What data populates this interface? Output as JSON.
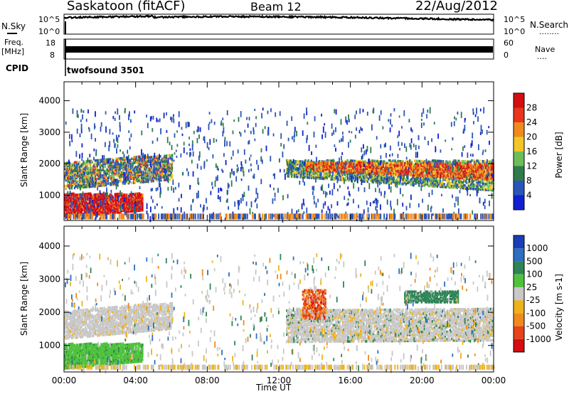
{
  "header": {
    "station": "Saskatoon (fitACF)",
    "beam": "Beam 12",
    "date": "22/Aug/2012"
  },
  "nsky_panel": {
    "left_label": "N.Sky",
    "right_label": "N.Search",
    "right_dots": "........",
    "tick_top": "10^5",
    "tick_bottom": "10^0"
  },
  "freq_panel": {
    "left_label_1": "Freq.",
    "left_label_2": "[MHz]",
    "tick_left_top": "18",
    "tick_left_bottom": "8",
    "right_label": "Nave",
    "right_dots": "....",
    "tick_right_top": "60",
    "tick_right_bottom": "0"
  },
  "cpid": {
    "label": "CPID",
    "program": "twofsound 3501"
  },
  "chart_data": [
    {
      "type": "heatmap",
      "name": "power",
      "ylabel": "Slant Range [km]",
      "ylim": [
        200,
        4600
      ],
      "yticks": [
        "1000",
        "2000",
        "3000",
        "4000"
      ],
      "ytick_values": [
        1000,
        2000,
        3000,
        4000
      ],
      "xlim": [
        0,
        24
      ],
      "colorbar": {
        "label": "Power [dB]",
        "ticks": [
          "4",
          "8",
          "12",
          "16",
          "20",
          "24",
          "28"
        ],
        "colors": [
          "#1020d0",
          "#2a55b8",
          "#2f7b4d",
          "#6fbd58",
          "#f2c62a",
          "#f08a1c",
          "#e8351c",
          "#d40d10"
        ]
      },
      "bands": [
        {
          "x": [
            0.0,
            4.4
          ],
          "y0": [
            300,
            520
          ],
          "y1": [
            1050,
            1050
          ],
          "level": "high"
        },
        {
          "x": [
            0.0,
            6.0
          ],
          "y0": [
            1200,
            1500
          ],
          "y1": [
            2050,
            2300
          ],
          "level": "mid"
        },
        {
          "x": [
            12.4,
            24.0
          ],
          "y0": [
            1600,
            1150
          ],
          "y1": [
            2100,
            2100
          ],
          "level": "mid"
        },
        {
          "x": [
            13.5,
            24.0
          ],
          "y0": [
            1800,
            1500
          ],
          "y1": [
            2050,
            2000
          ],
          "level": "high"
        }
      ]
    },
    {
      "type": "heatmap",
      "name": "velocity",
      "ylabel": "Slant Range [km]",
      "ylim": [
        200,
        4600
      ],
      "yticks": [
        "1000",
        "2000",
        "3000",
        "4000"
      ],
      "ytick_values": [
        1000,
        2000,
        3000,
        4000
      ],
      "xlim": [
        0,
        24
      ],
      "xticks": [
        "00:00",
        "04:00",
        "08:00",
        "12:00",
        "16:00",
        "20:00",
        "00:00"
      ],
      "xtick_values": [
        0,
        4,
        8,
        12,
        16,
        20,
        24
      ],
      "xlabel": "Time UT",
      "colorbar": {
        "label": "Velocity [m s-1]",
        "ticks": [
          "1000",
          "500",
          "100",
          "25",
          "-25",
          "-100",
          "-500",
          "-1000"
        ],
        "colors": [
          "#1b3db5",
          "#2c6ec0",
          "#2f8455",
          "#4fc23c",
          "#c8c8c8",
          "#f0b21b",
          "#f08a1c",
          "#e6441a",
          "#d40d10"
        ]
      },
      "bands": [
        {
          "x": [
            0.0,
            6.0
          ],
          "y0": [
            1200,
            1500
          ],
          "y1": [
            2050,
            2300
          ],
          "level": "ground"
        },
        {
          "x": [
            0.0,
            4.4
          ],
          "y0": [
            300,
            520
          ],
          "y1": [
            1050,
            1050
          ],
          "level": "green"
        },
        {
          "x": [
            12.4,
            24.0
          ],
          "y0": [
            1100,
            1150
          ],
          "y1": [
            2100,
            2100
          ],
          "level": "ground"
        },
        {
          "x": [
            13.3,
            14.6
          ],
          "y0": [
            1800,
            1800
          ],
          "y1": [
            2700,
            2700
          ],
          "level": "red"
        }
      ]
    }
  ]
}
